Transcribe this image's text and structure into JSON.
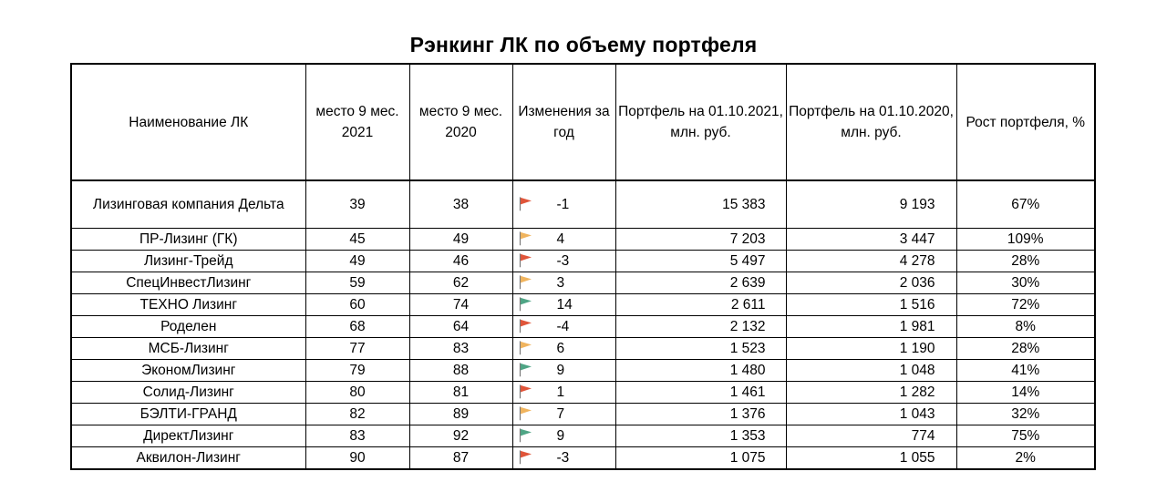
{
  "title": "Рэнкинг ЛК по объему портфеля",
  "columns": {
    "name": "Наименование ЛК",
    "place2021": "место 9 мес. 2021",
    "place2020": "место 9 мес. 2020",
    "change": "Изменения за год",
    "portfolio2021": "Портфель на 01.10.2021, млн. руб.",
    "portfolio2020": "Портфель на 01.10.2020, млн. руб.",
    "growth": "Рост портфеля, %"
  },
  "flag_colors": {
    "red": "#e0553a",
    "orange": "#f0b45e",
    "green": "#4fa585"
  },
  "rows": [
    {
      "name": "Лизинговая компания  Дельта",
      "place2021": "39",
      "place2020": "38",
      "flag": "red",
      "change": "-1",
      "portfolio2021": "15 383",
      "portfolio2020": "9 193",
      "growth": "67%"
    },
    {
      "name": "ПР-Лизинг  (ГК)",
      "place2021": "45",
      "place2020": "49",
      "flag": "orange",
      "change": "4",
      "portfolio2021": "7 203",
      "portfolio2020": "3 447",
      "growth": "109%"
    },
    {
      "name": "Лизинг-Трейд",
      "place2021": "49",
      "place2020": "46",
      "flag": "red",
      "change": "-3",
      "portfolio2021": "5 497",
      "portfolio2020": "4 278",
      "growth": "28%"
    },
    {
      "name": "СпецИнвестЛизинг",
      "place2021": "59",
      "place2020": "62",
      "flag": "orange",
      "change": "3",
      "portfolio2021": "2 639",
      "portfolio2020": "2 036",
      "growth": "30%"
    },
    {
      "name": "ТЕХНО Лизинг",
      "place2021": "60",
      "place2020": "74",
      "flag": "green",
      "change": "14",
      "portfolio2021": "2 611",
      "portfolio2020": "1 516",
      "growth": "72%"
    },
    {
      "name": "Роделен",
      "place2021": "68",
      "place2020": "64",
      "flag": "red",
      "change": "-4",
      "portfolio2021": "2 132",
      "portfolio2020": "1 981",
      "growth": "8%"
    },
    {
      "name": "МСБ-Лизинг",
      "place2021": "77",
      "place2020": "83",
      "flag": "orange",
      "change": "6",
      "portfolio2021": "1 523",
      "portfolio2020": "1 190",
      "growth": "28%"
    },
    {
      "name": "ЭкономЛизинг",
      "place2021": "79",
      "place2020": "88",
      "flag": "green",
      "change": "9",
      "portfolio2021": "1 480",
      "portfolio2020": "1 048",
      "growth": "41%"
    },
    {
      "name": "Солид-Лизинг",
      "place2021": "80",
      "place2020": "81",
      "flag": "red",
      "change": "1",
      "portfolio2021": "1 461",
      "portfolio2020": "1 282",
      "growth": "14%"
    },
    {
      "name": "БЭЛТИ-ГРАНД",
      "place2021": "82",
      "place2020": "89",
      "flag": "orange",
      "change": "7",
      "portfolio2021": "1 376",
      "portfolio2020": "1 043",
      "growth": "32%"
    },
    {
      "name": "ДиректЛизинг",
      "place2021": "83",
      "place2020": "92",
      "flag": "green",
      "change": "9",
      "portfolio2021": "1 353",
      "portfolio2020": "774",
      "growth": "75%"
    },
    {
      "name": "Аквилон-Лизинг",
      "place2021": "90",
      "place2020": "87",
      "flag": "red",
      "change": "-3",
      "portfolio2021": "1 075",
      "portfolio2020": "1 055",
      "growth": "2%"
    }
  ]
}
